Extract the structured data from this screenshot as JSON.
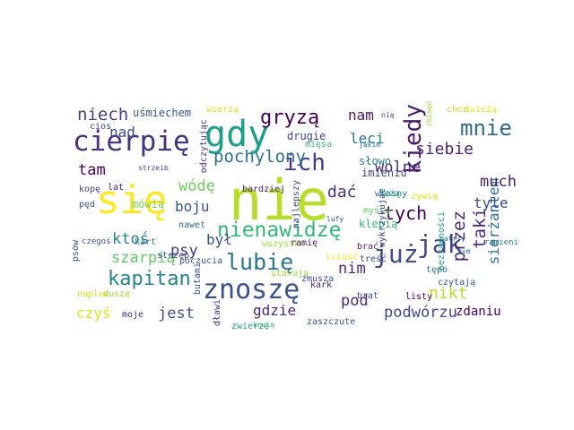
{
  "words": [
    {
      "text": "nie",
      "color": "#b5de2b"
    },
    {
      "text": "się",
      "color": "#fde725"
    },
    {
      "text": "gdy",
      "color": "#1f9e89"
    },
    {
      "text": "cierpię",
      "color": "#46327e"
    },
    {
      "text": "znoszę",
      "color": "#3b528b"
    },
    {
      "text": "nienawidzę",
      "color": "#35b779"
    },
    {
      "text": "lubię",
      "color": "#2a788e"
    },
    {
      "text": "już",
      "color": "#3e4a89"
    },
    {
      "text": "jak",
      "color": "#414487"
    },
    {
      "text": "kiedy",
      "color": "#481a6c"
    },
    {
      "text": "ich",
      "color": "#443a83"
    },
    {
      "text": "mnie",
      "color": "#31688e"
    },
    {
      "text": "gryzą",
      "color": "#440154"
    },
    {
      "text": "pochylony",
      "color": "#2c728e"
    },
    {
      "text": "kapitan",
      "color": "#26828e"
    },
    {
      "text": "szarpią",
      "color": "#5ec962"
    },
    {
      "text": "przez",
      "color": "#482677"
    },
    {
      "text": "taki",
      "color": "#472d7b"
    },
    {
      "text": "sierżantem",
      "color": "#2c728e"
    },
    {
      "text": "niech",
      "color": "#433e85"
    },
    {
      "text": "podwórzu",
      "color": "#3e4a89"
    },
    {
      "text": "tych",
      "color": "#440154"
    },
    {
      "text": "siebie",
      "color": "#482475"
    },
    {
      "text": "nikt",
      "color": "#b5de2b"
    },
    {
      "text": "jest",
      "color": "#3b528b"
    },
    {
      "text": "czyś",
      "color": "#dde318"
    },
    {
      "text": "gdzie",
      "color": "#482878"
    },
    {
      "text": "wódę",
      "color": "#6ccd5a"
    },
    {
      "text": "boju",
      "color": "#3b528b"
    },
    {
      "text": "psy",
      "color": "#443a83"
    },
    {
      "text": "nim",
      "color": "#482878"
    },
    {
      "text": "nad",
      "color": "#3e4a89"
    },
    {
      "text": "tam",
      "color": "#440154"
    },
    {
      "text": "ktoś",
      "color": "#26828e"
    },
    {
      "text": "był",
      "color": "#3b528b"
    },
    {
      "text": "wolne",
      "color": "#472c7a"
    },
    {
      "text": "leci",
      "color": "#2a788e"
    },
    {
      "text": "nam",
      "color": "#481467"
    },
    {
      "text": "dać",
      "color": "#46337f"
    },
    {
      "text": "much",
      "color": "#482071"
    },
    {
      "text": "tyle",
      "color": "#3e4989"
    },
    {
      "text": "pod",
      "color": "#482878"
    },
    {
      "text": "zdaniu",
      "color": "#440154"
    },
    {
      "text": "uśmiechem",
      "color": "#3b528b"
    },
    {
      "text": "mówią",
      "color": "#7ad151"
    },
    {
      "text": "drugie",
      "color": "#414487"
    },
    {
      "text": "klepią",
      "color": "#35b779"
    },
    {
      "text": "słowo",
      "color": "#2a788e"
    },
    {
      "text": "imieniu",
      "color": "#414487"
    },
    {
      "text": "wierzą",
      "color": "#d8e219"
    },
    {
      "text": "odczytując",
      "color": "#46337f"
    },
    {
      "text": "mięsa",
      "color": "#35b779"
    },
    {
      "text": "zbiegów",
      "color": "#a0da39"
    },
    {
      "text": "jakim",
      "color": "#2a788e"
    },
    {
      "text": "nią",
      "color": "#3b528b"
    },
    {
      "text": "chce",
      "color": "#c2df23"
    },
    {
      "text": "świeżą",
      "color": "#e5e419"
    },
    {
      "text": "cios",
      "color": "#3e4a89"
    },
    {
      "text": "kopę",
      "color": "#433e85"
    },
    {
      "text": "lat",
      "color": "#482576"
    },
    {
      "text": "strzeib",
      "color": "#3e4a89"
    },
    {
      "text": "pęd",
      "color": "#3b528b"
    },
    {
      "text": "bardziej",
      "color": "#482677"
    },
    {
      "text": "leżą",
      "color": "#35b779"
    },
    {
      "text": "myślą",
      "color": "#5ec962"
    },
    {
      "text": "wykrzykując",
      "color": "#414487"
    },
    {
      "text": "własny",
      "color": "#2a788e"
    },
    {
      "text": "najlepszy",
      "color": "#404688"
    },
    {
      "text": "zywią",
      "color": "#dde318"
    },
    {
      "text": "bezradności",
      "color": "#1f9e89"
    },
    {
      "text": "lufy",
      "color": "#3e4a89"
    },
    {
      "text": "patrzy",
      "color": "#31688e"
    },
    {
      "text": "tym",
      "color": "#2c728e"
    },
    {
      "text": "ramieniu",
      "color": "#2a788e"
    },
    {
      "text": "psów",
      "color": "#3e4a89"
    },
    {
      "text": "czegoś",
      "color": "#3b528b"
    },
    {
      "text": "kart",
      "color": "#2a788e"
    },
    {
      "text": "nawet",
      "color": "#31688e"
    },
    {
      "text": "wszystko",
      "color": "#a0da39"
    },
    {
      "text": "ramię",
      "color": "#481a6c"
    },
    {
      "text": "brać",
      "color": "#482878"
    },
    {
      "text": "litość",
      "color": "#fde725"
    },
    {
      "text": "treść",
      "color": "#3e4a89"
    },
    {
      "text": "tępo",
      "color": "#2c728e"
    },
    {
      "text": "czytają",
      "color": "#3b528b"
    },
    {
      "text": "strzęp",
      "color": "#3e4a89"
    },
    {
      "text": "butami",
      "color": "#3e4a89"
    },
    {
      "text": "poczucia",
      "color": "#3b528b"
    },
    {
      "text": "starają",
      "color": "#a0da39"
    },
    {
      "text": "zmusza",
      "color": "#3b528b"
    },
    {
      "text": "kark",
      "color": "#482878"
    },
    {
      "text": "listy",
      "color": "#440154"
    },
    {
      "text": "brat",
      "color": "#3b528b"
    },
    {
      "text": "napluć",
      "color": "#dde318"
    },
    {
      "text": "duszę",
      "color": "#a0da39"
    },
    {
      "text": "moje",
      "color": "#482878"
    },
    {
      "text": "dławi",
      "color": "#46337f"
    },
    {
      "text": "zwierzę",
      "color": "#1f9e89"
    },
    {
      "text": "krwią",
      "color": "#35b779"
    },
    {
      "text": "zaszczute",
      "color": "#3b528b"
    }
  ]
}
